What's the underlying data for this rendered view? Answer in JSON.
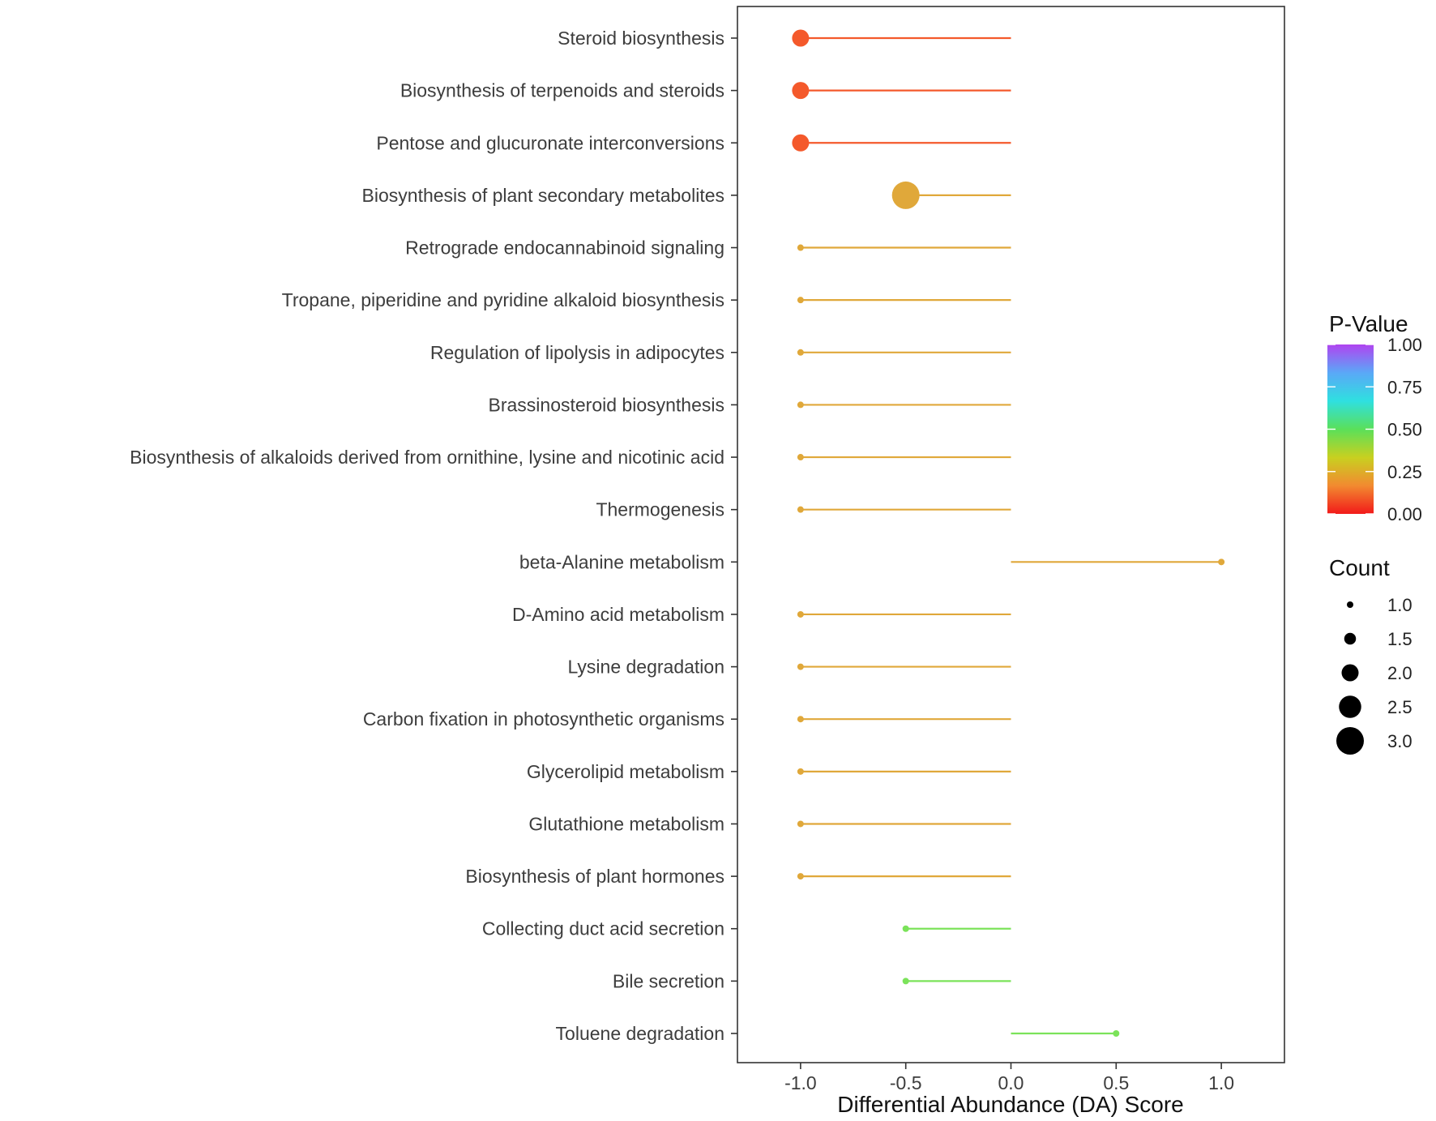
{
  "chart_data": {
    "type": "lollipop",
    "xlabel": "Differential Abundance (DA) Score",
    "xlim": [
      -1.3,
      1.3
    ],
    "xticks": [
      -1.0,
      -0.5,
      0.0,
      0.5,
      1.0
    ],
    "xtick_labels": [
      "-1.0",
      "-0.5",
      "0.0",
      "0.5",
      "1.0"
    ],
    "grid": false,
    "items": [
      {
        "label": "Steroid biosynthesis",
        "value": -1.0,
        "count": 2,
        "color": "#f4592b"
      },
      {
        "label": "Biosynthesis of terpenoids and steroids",
        "value": -1.0,
        "count": 2,
        "color": "#f4592b"
      },
      {
        "label": "Pentose and glucuronate interconversions",
        "value": -1.0,
        "count": 2,
        "color": "#f4592b"
      },
      {
        "label": "Biosynthesis of plant secondary metabolites",
        "value": -0.5,
        "count": 3,
        "color": "#e0a83a"
      },
      {
        "label": "Retrograde endocannabinoid signaling",
        "value": -1.0,
        "count": 1,
        "color": "#e0a83a"
      },
      {
        "label": "Tropane, piperidine and pyridine alkaloid biosynthesis",
        "value": -1.0,
        "count": 1,
        "color": "#e0a83a"
      },
      {
        "label": "Regulation of lipolysis in adipocytes",
        "value": -1.0,
        "count": 1,
        "color": "#e0a83a"
      },
      {
        "label": "Brassinosteroid biosynthesis",
        "value": -1.0,
        "count": 1,
        "color": "#e0a83a"
      },
      {
        "label": "Biosynthesis of alkaloids derived from ornithine, lysine and nicotinic acid",
        "value": -1.0,
        "count": 1,
        "color": "#e0a83a"
      },
      {
        "label": "Thermogenesis",
        "value": -1.0,
        "count": 1,
        "color": "#e0a83a"
      },
      {
        "label": "beta-Alanine metabolism",
        "value": 1.0,
        "count": 1,
        "color": "#e0a83a"
      },
      {
        "label": "D-Amino acid metabolism",
        "value": -1.0,
        "count": 1,
        "color": "#e0a83a"
      },
      {
        "label": "Lysine degradation",
        "value": -1.0,
        "count": 1,
        "color": "#e0a83a"
      },
      {
        "label": "Carbon fixation in photosynthetic organisms",
        "value": -1.0,
        "count": 1,
        "color": "#e0a83a"
      },
      {
        "label": "Glycerolipid metabolism",
        "value": -1.0,
        "count": 1,
        "color": "#e0a83a"
      },
      {
        "label": "Glutathione metabolism",
        "value": -1.0,
        "count": 1,
        "color": "#e0a83a"
      },
      {
        "label": "Biosynthesis of plant hormones",
        "value": -1.0,
        "count": 1,
        "color": "#e0a83a"
      },
      {
        "label": "Collecting duct acid secretion",
        "value": -0.5,
        "count": 1,
        "color": "#7be35a"
      },
      {
        "label": "Bile secretion",
        "value": -0.5,
        "count": 1,
        "color": "#7be35a"
      },
      {
        "label": "Toluene degradation",
        "value": 0.5,
        "count": 1,
        "color": "#7be35a"
      }
    ],
    "legend": {
      "pvalue": {
        "title": "P-Value",
        "labels": [
          "1.00",
          "0.75",
          "0.50",
          "0.25",
          "0.00"
        ],
        "colors": [
          "#b044f0",
          "#5aa8f7",
          "#2fe0e0",
          "#5ae05a",
          "#c8d020",
          "#f28a30",
          "#f21a1a"
        ]
      },
      "count": {
        "title": "Count",
        "labels": [
          "1.0",
          "1.5",
          "2.0",
          "2.5",
          "3.0"
        ],
        "values": [
          1.0,
          1.5,
          2.0,
          2.5,
          3.0
        ],
        "color": "#000000"
      }
    }
  }
}
